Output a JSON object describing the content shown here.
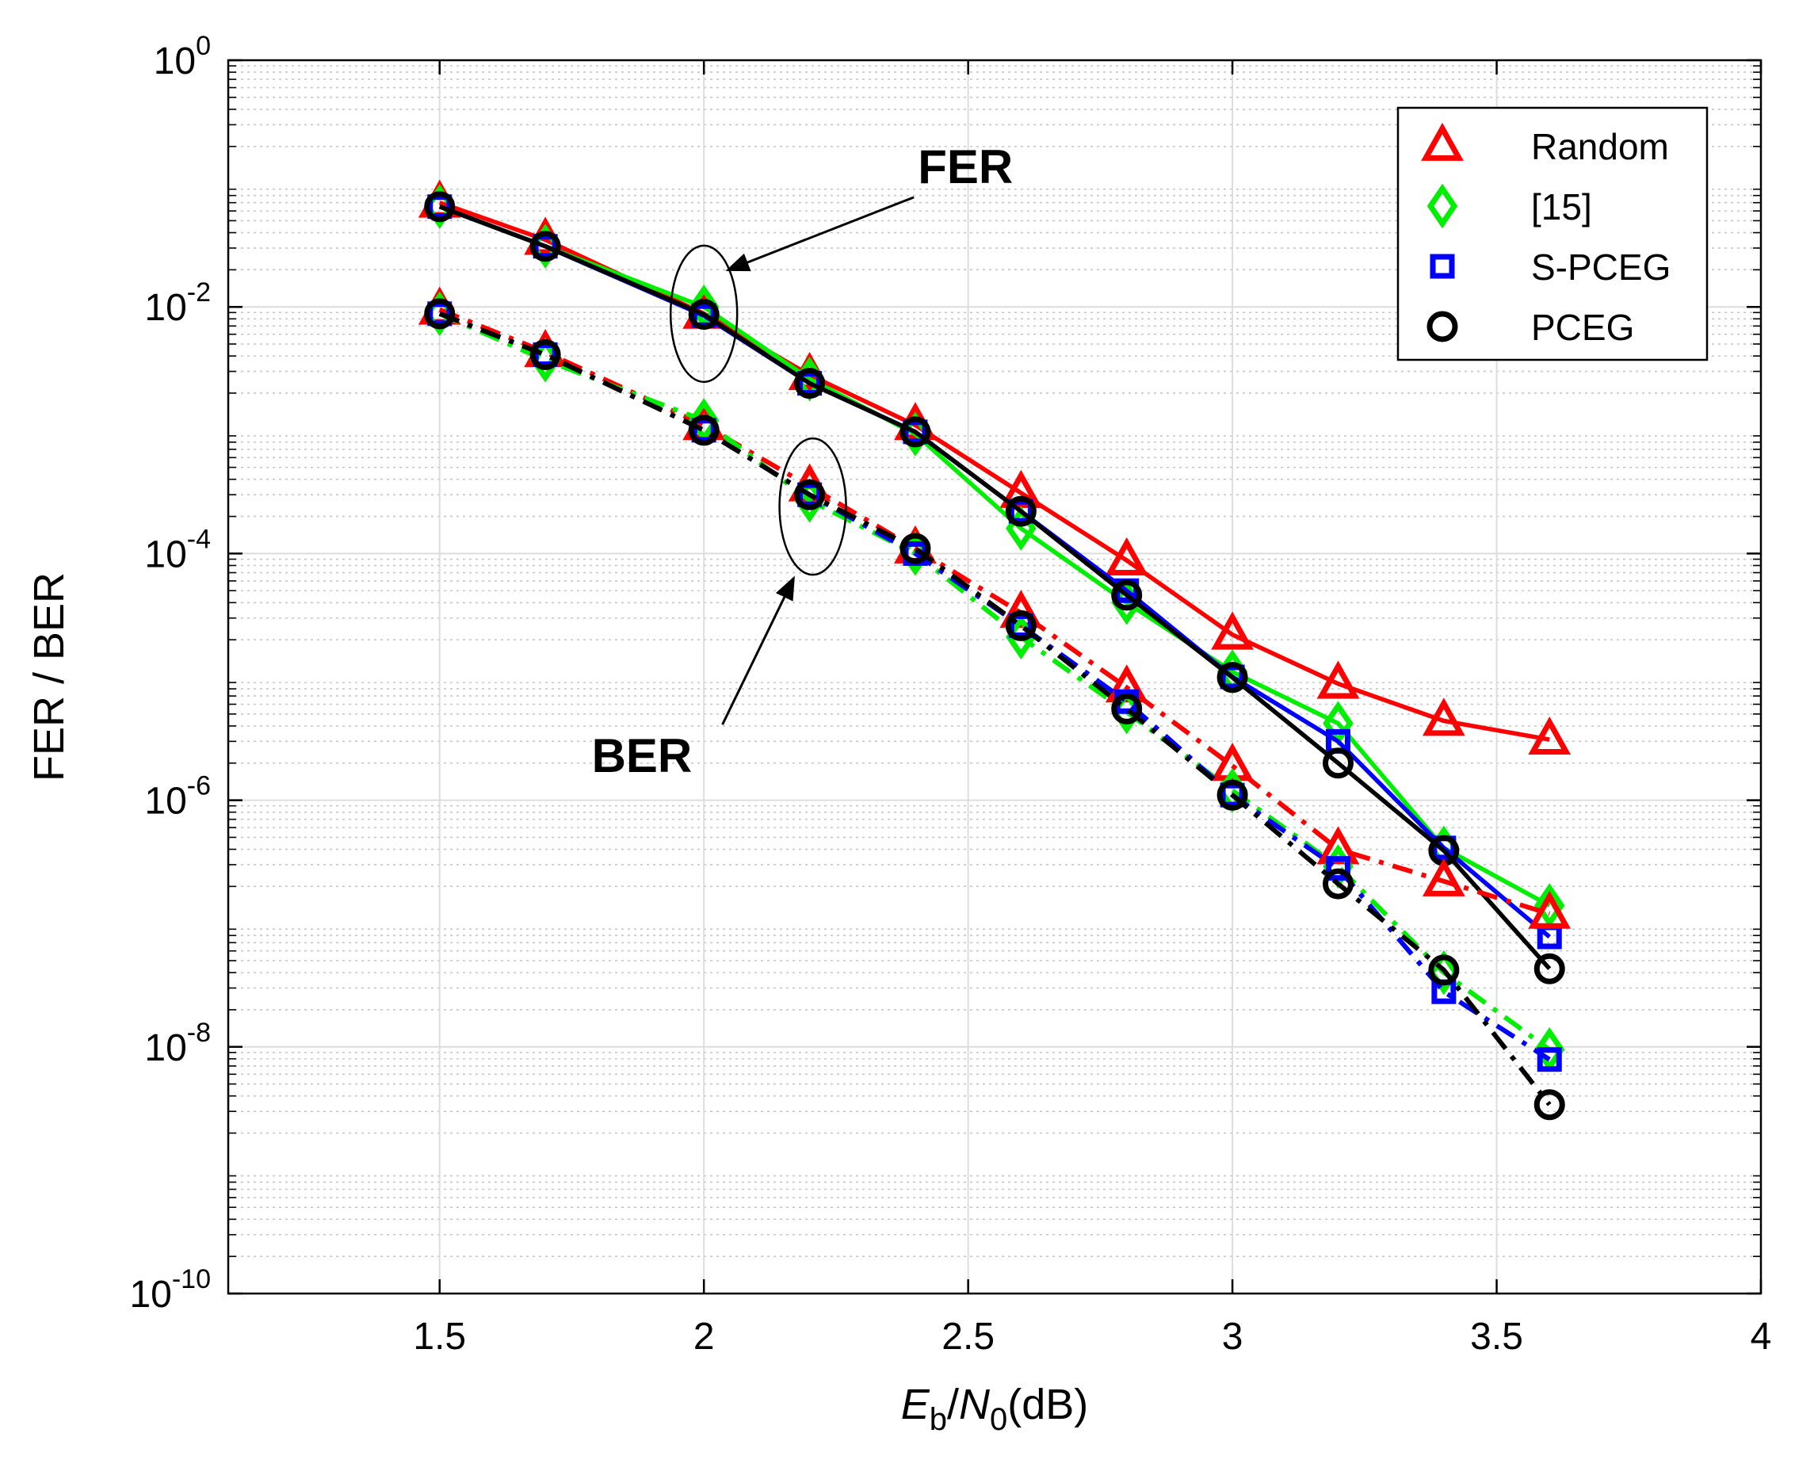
{
  "chart_data": {
    "type": "line",
    "xlabel": {
      "main": "E",
      "sub1": "b",
      "slash": "/",
      "main2": "N",
      "sub2": "0",
      "suffix": "(dB)"
    },
    "ylabel": "FER / BER",
    "xlim": [
      1.1,
      4.0
    ],
    "ylim_exp": [
      -10,
      0
    ],
    "y_scale": "log",
    "grid": true,
    "x_ticks": [
      {
        "value": 1.5,
        "label": "1.5"
      },
      {
        "value": 2.0,
        "label": "2"
      },
      {
        "value": 2.5,
        "label": "2.5"
      },
      {
        "value": 3.0,
        "label": "3"
      },
      {
        "value": 3.5,
        "label": "3.5"
      },
      {
        "value": 4.0,
        "label": "4"
      }
    ],
    "y_ticks": [
      {
        "exp": 0,
        "base": "10",
        "sup": "0"
      },
      {
        "exp": -2,
        "base": "10",
        "sup": "-2"
      },
      {
        "exp": -4,
        "base": "10",
        "sup": "-4"
      },
      {
        "exp": -6,
        "base": "10",
        "sup": "-6"
      },
      {
        "exp": -8,
        "base": "10",
        "sup": "-8"
      },
      {
        "exp": -10,
        "base": "10",
        "sup": "-10"
      }
    ],
    "legend_position": "top-right",
    "series": [
      {
        "name": "Random",
        "key": "random",
        "metric": "FER",
        "color": "#ff0000",
        "marker": "triangle",
        "line": "solid",
        "x": [
          1.5,
          1.7,
          2.0,
          2.2,
          2.4,
          2.6,
          2.8,
          3.0,
          3.2,
          3.4,
          3.6
        ],
        "y": [
          0.07,
          0.035,
          0.0088,
          0.0028,
          0.0011,
          0.00031,
          8.8e-05,
          2.2e-05,
          8.8e-06,
          4.4e-06,
          3.1e-06
        ]
      },
      {
        "name": "[15]",
        "key": "ref15",
        "metric": "FER",
        "color": "#00ee00",
        "marker": "diamond",
        "line": "solid",
        "x": [
          1.5,
          1.7,
          2.0,
          2.2,
          2.4,
          2.6,
          2.8,
          3.0,
          3.2,
          3.4,
          3.6
        ],
        "y": [
          0.065,
          0.031,
          0.01,
          0.0026,
          0.00093,
          0.00016,
          4e-05,
          1.1e-05,
          4.2e-06,
          4.1e-07,
          1.4e-07
        ]
      },
      {
        "name": "S-PCEG",
        "key": "spceg",
        "metric": "FER",
        "color": "#0000ff",
        "marker": "square",
        "line": "solid",
        "x": [
          1.5,
          1.7,
          2.0,
          2.2,
          2.4,
          2.6,
          2.8,
          3.0,
          3.2,
          3.4,
          3.6
        ],
        "y": [
          0.065,
          0.031,
          0.0085,
          0.0024,
          0.00097,
          0.00022,
          5e-05,
          1e-05,
          3e-06,
          4.1e-07,
          7.8e-08
        ]
      },
      {
        "name": "PCEG",
        "key": "pceg",
        "metric": "FER",
        "color": "#000000",
        "marker": "circle",
        "line": "solid",
        "x": [
          1.5,
          1.7,
          2.0,
          2.2,
          2.4,
          2.6,
          2.8,
          3.0,
          3.2,
          3.4,
          3.6
        ],
        "y": [
          0.065,
          0.031,
          0.0087,
          0.0024,
          0.00097,
          0.00022,
          4.6e-05,
          9.9e-06,
          2e-06,
          3.9e-07,
          4.3e-08
        ]
      },
      {
        "name": "Random",
        "key": "random",
        "metric": "BER",
        "color": "#ff0000",
        "marker": "triangle",
        "line": "dashdot",
        "x": [
          1.5,
          1.7,
          2.0,
          2.2,
          2.4,
          2.6,
          2.8,
          3.0,
          3.2,
          3.4,
          3.6
        ],
        "y": [
          0.0095,
          0.0043,
          0.0011,
          0.00035,
          0.00011,
          3.3e-05,
          8.2e-06,
          1.9e-06,
          4e-07,
          2.2e-07,
          1.2e-07
        ]
      },
      {
        "name": "[15]",
        "key": "ref15",
        "metric": "BER",
        "color": "#00ee00",
        "marker": "diamond",
        "line": "dashdot",
        "x": [
          1.5,
          1.7,
          2.0,
          2.2,
          2.4,
          2.6,
          2.8,
          3.0,
          3.2,
          3.4,
          3.6
        ],
        "y": [
          0.0088,
          0.0037,
          0.0012,
          0.00027,
          0.0001,
          2.1e-05,
          5.2e-06,
          1.2e-06,
          2.9e-07,
          4e-08,
          9.5e-09
        ]
      },
      {
        "name": "S-PCEG",
        "key": "spceg",
        "metric": "BER",
        "color": "#0000ff",
        "marker": "square",
        "line": "dashdot",
        "x": [
          1.5,
          1.7,
          2.0,
          2.2,
          2.4,
          2.6,
          2.8,
          3.0,
          3.2,
          3.4,
          3.6
        ],
        "y": [
          0.0088,
          0.0041,
          0.001,
          0.0003,
          0.0001,
          2.6e-05,
          6.3e-06,
          1.1e-06,
          2.8e-07,
          2.8e-08,
          7.9e-09
        ]
      },
      {
        "name": "PCEG",
        "key": "pceg",
        "metric": "BER",
        "color": "#000000",
        "marker": "circle",
        "line": "dashdot",
        "x": [
          1.5,
          1.7,
          2.0,
          2.2,
          2.4,
          2.6,
          2.8,
          3.0,
          3.2,
          3.4,
          3.6
        ],
        "y": [
          0.0088,
          0.0041,
          0.001,
          0.0003,
          0.00011,
          2.6e-05,
          5.5e-06,
          1.1e-06,
          2.1e-07,
          4.2e-08,
          3.4e-09
        ]
      }
    ],
    "legend": [
      {
        "label": "Random",
        "color": "#ff0000",
        "marker": "triangle"
      },
      {
        "label": "[15]",
        "color": "#00ee00",
        "marker": "diamond"
      },
      {
        "label": "S-PCEG",
        "color": "#0000ff",
        "marker": "square"
      },
      {
        "label": "PCEG",
        "color": "#000000",
        "marker": "circle"
      }
    ],
    "annotations": [
      {
        "key": "fer",
        "text": "FER",
        "target_x": 2.0,
        "target_y": 0.0088
      },
      {
        "key": "ber",
        "text": "BER",
        "target_x": 2.2,
        "target_y": 0.0003
      }
    ]
  }
}
